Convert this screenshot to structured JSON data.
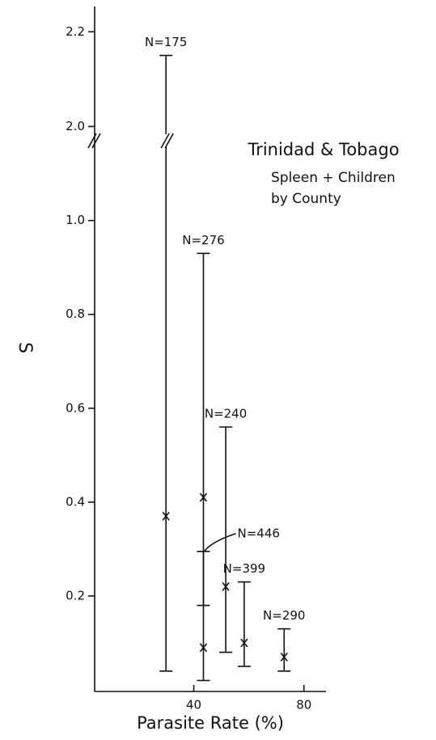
{
  "chart_data": {
    "type": "errorbar",
    "title": "Trinidad & Tobago",
    "subtitle": [
      "Spleen + Children",
      "by County"
    ],
    "x_label": "Parasite Rate (%)",
    "y_label": "S",
    "xlim": [
      4,
      88
    ],
    "xticks": [
      40,
      80
    ],
    "ylim": [
      0,
      1.17
    ],
    "yticks": [
      0.2,
      0.4,
      0.6,
      0.8,
      {
        "value": 1,
        "label": "1.0"
      }
    ],
    "ylim_upper": [
      1.97,
      2.25
    ],
    "yticks_upper": [
      {
        "value": 2,
        "label": "2.0"
      },
      2.2
    ],
    "color": "#111111",
    "series": [
      {
        "name": "N=175",
        "x": 29.9,
        "y": 0.37,
        "low": 0.04,
        "high": 2.15
      },
      {
        "name": "N=276",
        "x": 43.5,
        "y": 0.41,
        "low": 0.18,
        "high": 0.93
      },
      {
        "name": "N=446",
        "x": 43.5,
        "y": 0.09,
        "low": 0.02,
        "high": 0.295
      },
      {
        "name": "N=240",
        "x": 51.6,
        "y": 0.22,
        "low": 0.08,
        "high": 0.56
      },
      {
        "name": "N=399",
        "x": 58.3,
        "y": 0.1,
        "low": 0.05,
        "high": 0.23
      },
      {
        "name": "N=290",
        "x": 72.8,
        "y": 0.07,
        "low": 0.04,
        "high": 0.13
      }
    ]
  }
}
